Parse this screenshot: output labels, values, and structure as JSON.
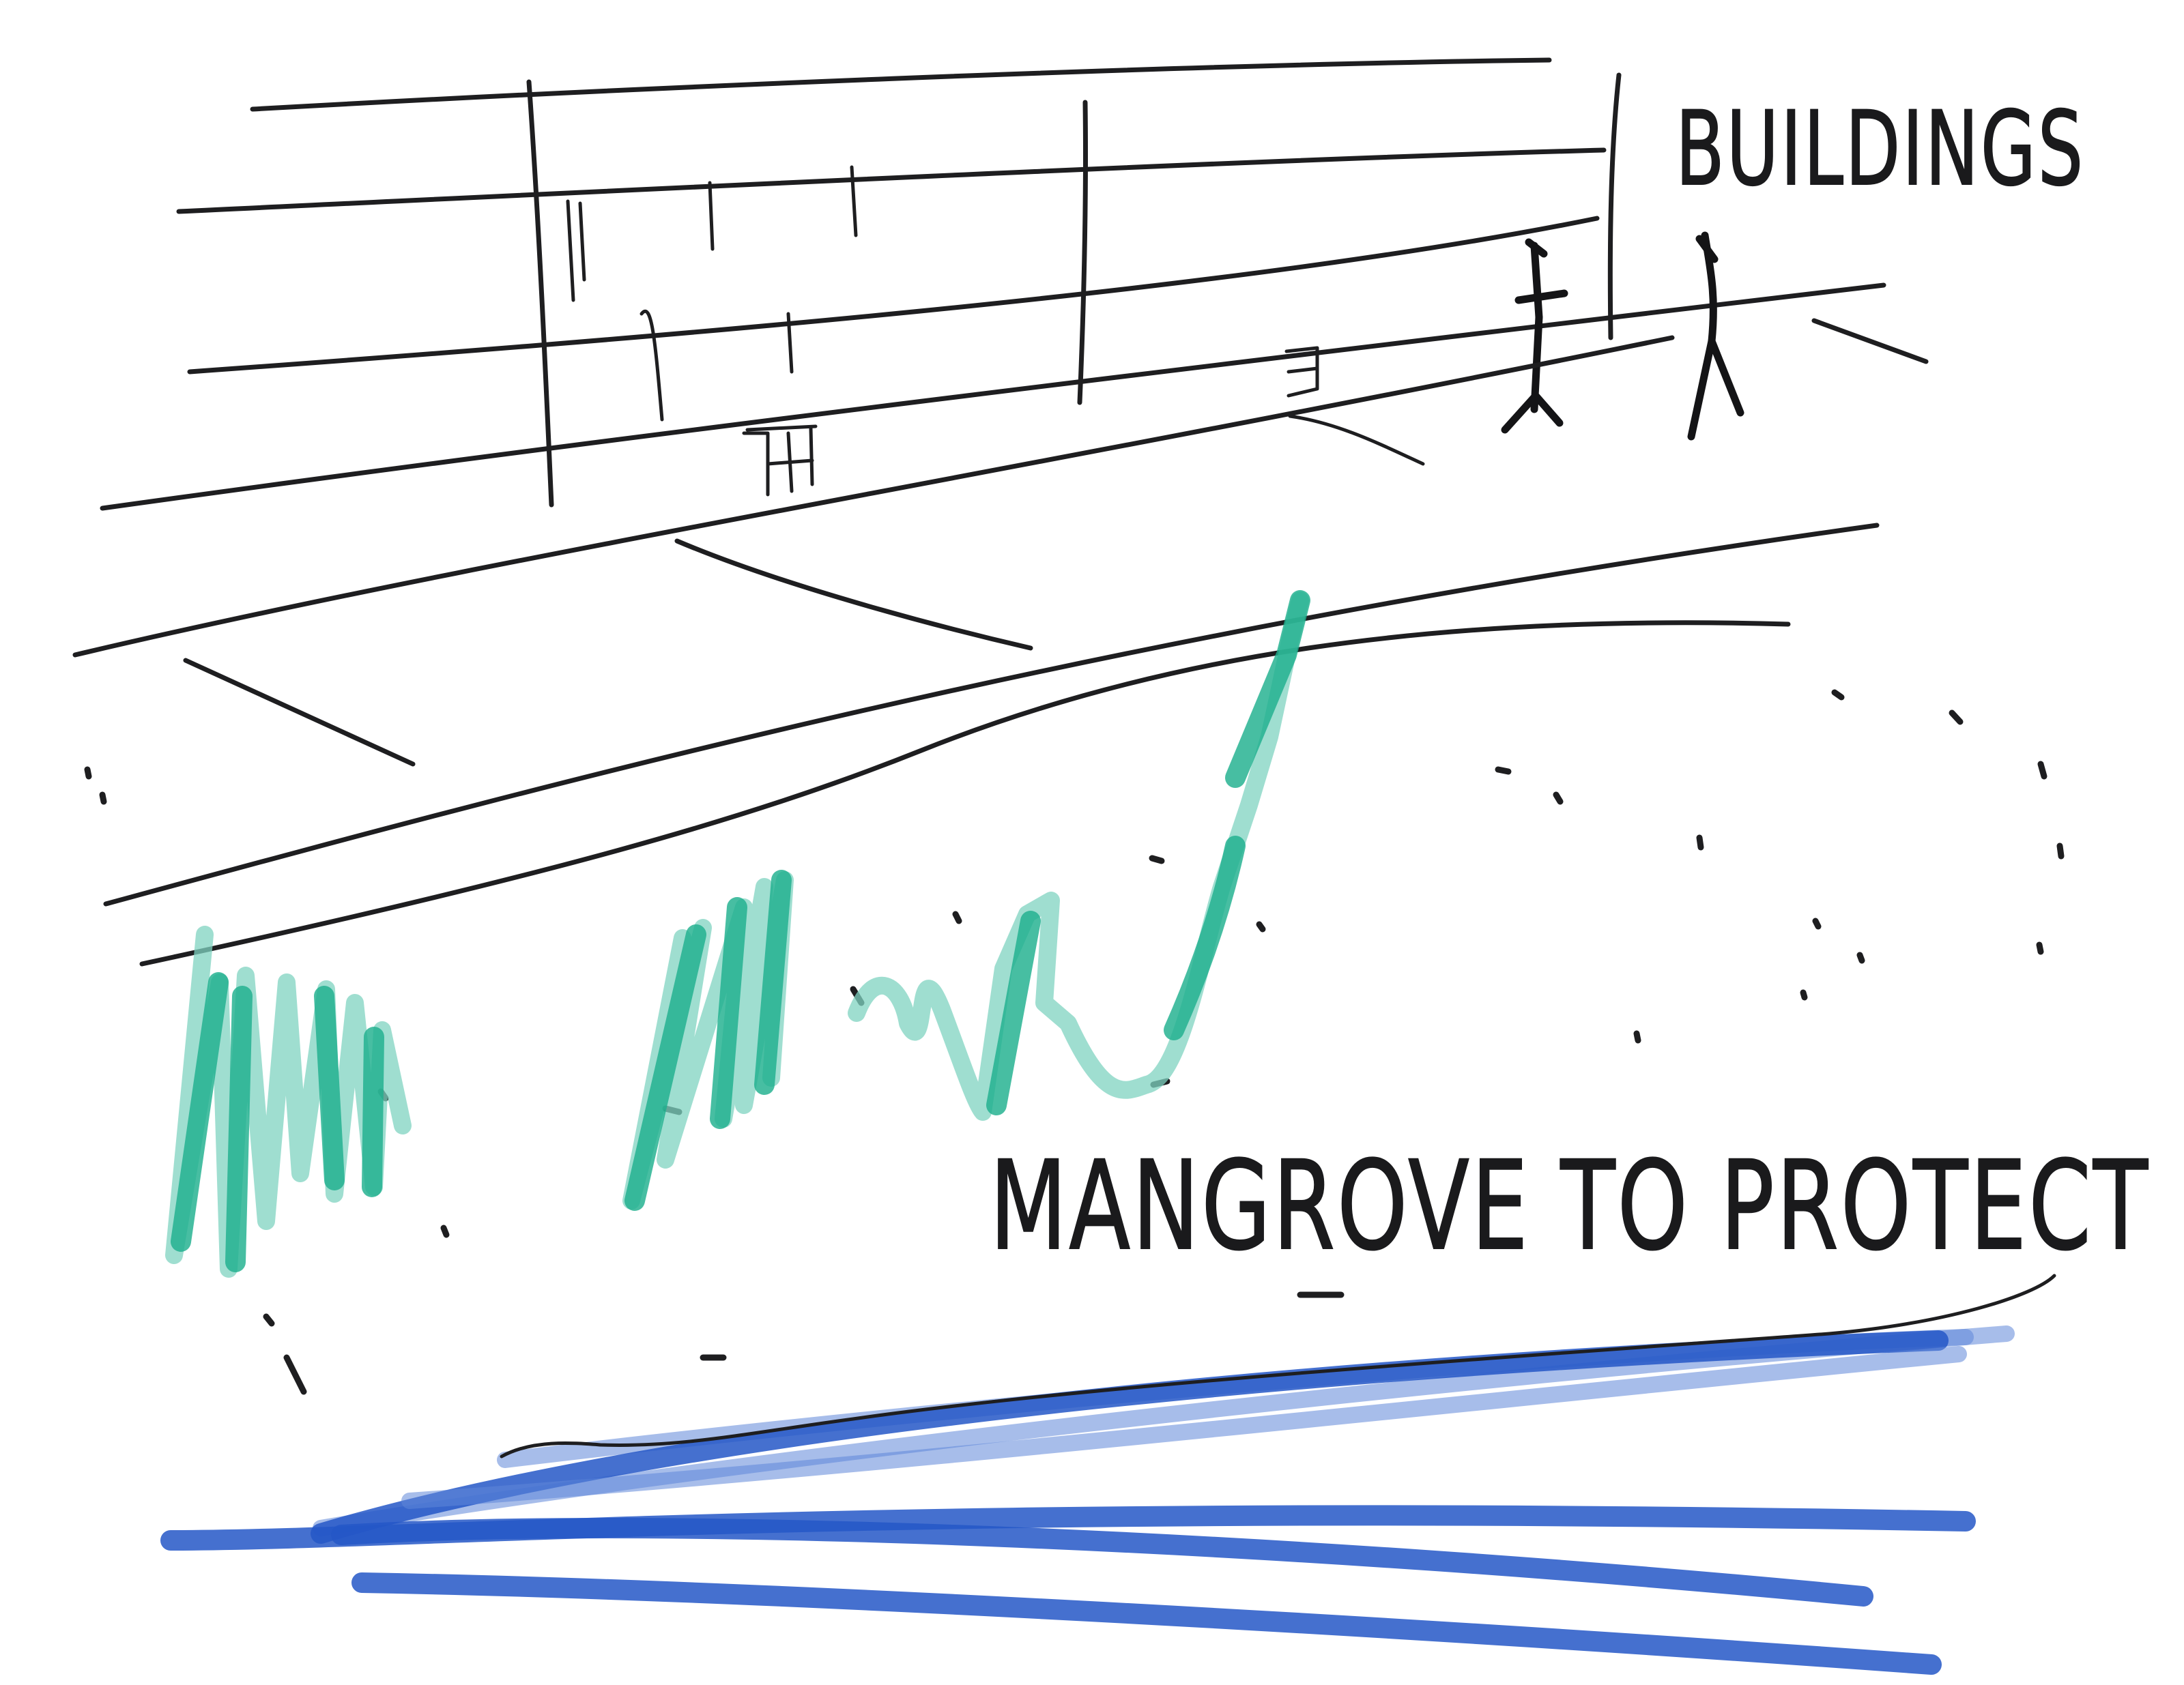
{
  "labels": {
    "buildings": "BUILDINGS",
    "mangrove": "MANGROVE TO PROTECT"
  },
  "colors": {
    "ink": "#1e1e20",
    "mangrove_marker": "#1fb08e",
    "water_marker": "#2457c7",
    "paper": "#ffffff"
  }
}
